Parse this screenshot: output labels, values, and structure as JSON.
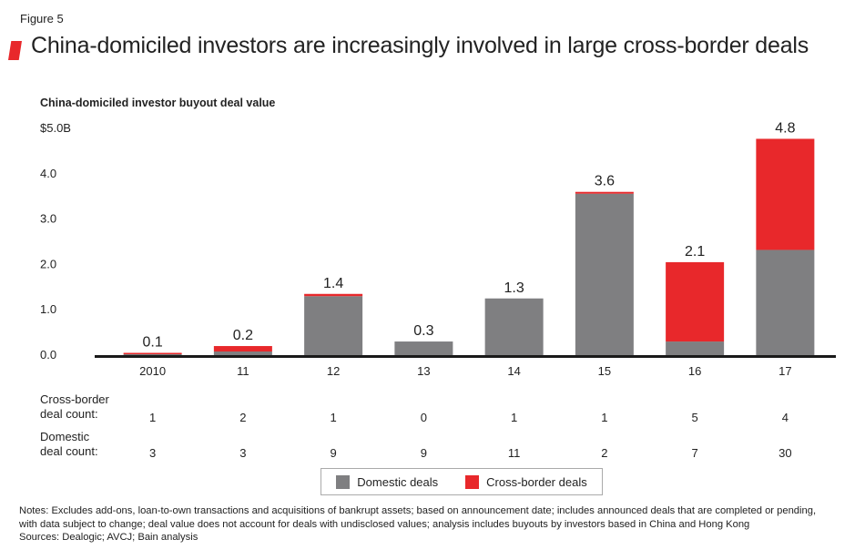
{
  "figure_label": "Figure 5",
  "title": "China-domiciled investors are increasingly involved in large cross-border deals",
  "chart_data": {
    "type": "bar",
    "stacked": true,
    "title": "China-domiciled investor buyout deal value",
    "categories": [
      "2010",
      "11",
      "12",
      "13",
      "14",
      "15",
      "16",
      "17"
    ],
    "series": [
      {
        "name": "Domestic deals",
        "color": "#7f7f81",
        "values": [
          0.02,
          0.08,
          1.3,
          0.3,
          1.25,
          3.56,
          0.3,
          2.32
        ]
      },
      {
        "name": "Cross-border deals",
        "color": "#e8282b",
        "values": [
          0.03,
          0.12,
          0.05,
          0.0,
          0.0,
          0.04,
          1.75,
          2.45
        ]
      }
    ],
    "totals": [
      "0.1",
      "0.2",
      "1.4",
      "0.3",
      "1.3",
      "3.6",
      "2.1",
      "4.8"
    ],
    "y_ticks": [
      "0.0",
      "1.0",
      "2.0",
      "3.0",
      "4.0",
      "$5.0B"
    ],
    "ylim": [
      0,
      5
    ],
    "xlabel": "",
    "ylabel": ""
  },
  "table": {
    "cross_border": {
      "label_line1": "Cross-border",
      "label_line2": "deal count:",
      "values": [
        "1",
        "2",
        "1",
        "0",
        "1",
        "1",
        "5",
        "4"
      ]
    },
    "domestic": {
      "label_line1": "Domestic",
      "label_line2": "deal count:",
      "values": [
        "3",
        "3",
        "9",
        "9",
        "11",
        "2",
        "7",
        "30"
      ]
    }
  },
  "legend": {
    "domestic": "Domestic deals",
    "cross_border": "Cross-border deals"
  },
  "notes": {
    "line1": "Notes: Excludes add-ons, loan-to-own transactions and acquisitions of bankrupt assets; based on announcement date; includes announced deals that are completed or pending,",
    "line2": "with data subject to change; deal value does not account for deals with undisclosed values; analysis includes buyouts by investors based in China and Hong Kong",
    "line3": "Sources: Dealogic; AVCJ; Bain analysis"
  },
  "colors": {
    "domestic": "#7f7f81",
    "cross_border": "#e8282b",
    "axis": "#1a1a1a"
  }
}
